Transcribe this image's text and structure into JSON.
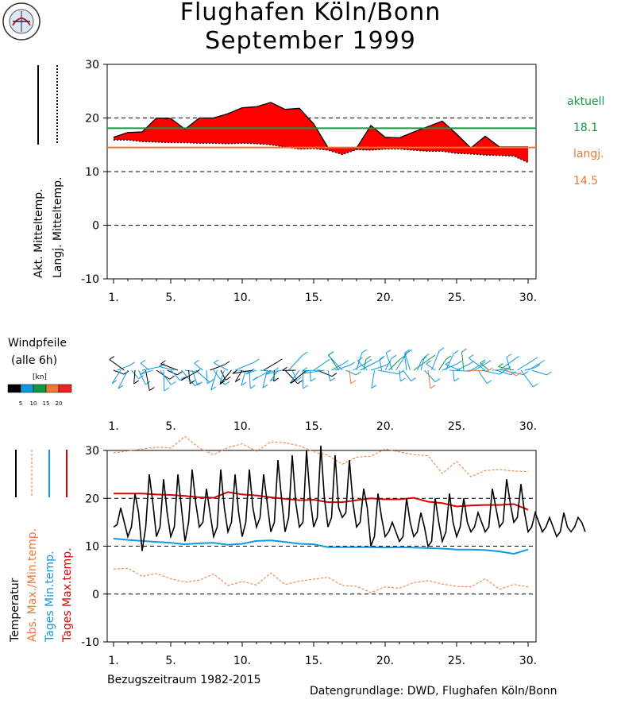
{
  "header": {
    "title_line1": "Flughafen Köln/Bonn",
    "title_line2": "September 1999"
  },
  "logo": {
    "text": "Wetterstation"
  },
  "footer": {
    "reference_period": "Bezugszeitraum 1982-2015",
    "source": "Datengrundlage: DWD, Flughafen Köln/Bonn"
  },
  "colors": {
    "current": "#119944",
    "longterm": "#ee7733",
    "fill": "#ff0000",
    "tmax": "#dd0000",
    "tmin": "#1199dd",
    "absolute": "#ee7733"
  },
  "side_labels": {
    "aktuell_label": "aktuell",
    "aktuell_value": "18.1",
    "langj_label": "langj.",
    "langj_value": "14.5"
  },
  "wind_legend": {
    "title_line1": "Windpfeile",
    "title_line2": "(alle 6h)",
    "unit": "[kn]",
    "ticks": [
      "5",
      "10",
      "15",
      "20"
    ],
    "colors": [
      "#000000",
      "#1199dd",
      "#119944",
      "#ee7733",
      "#ee2222"
    ]
  },
  "chart_data": [
    {
      "type": "area",
      "ylabel_1": "Akt. Mitteltemp.",
      "ylabel_2": "Langj. Mitteltemp.",
      "ylim": [
        -10,
        30
      ],
      "yticks": [
        "-10",
        "0",
        "10",
        "20",
        "30"
      ],
      "xticks": [
        "1.",
        "5.",
        "10.",
        "15.",
        "20.",
        "25.",
        "30."
      ],
      "grid": "dashed horizontal",
      "x": [
        1,
        2,
        3,
        4,
        5,
        6,
        7,
        8,
        9,
        10,
        11,
        12,
        13,
        14,
        15,
        16,
        17,
        18,
        19,
        20,
        21,
        22,
        23,
        24,
        25,
        26,
        27,
        28,
        29,
        30
      ],
      "series": [
        {
          "name": "Akt. Mitteltemp.",
          "values": [
            16.4,
            17.3,
            17.4,
            20.0,
            19.9,
            17.9,
            20.0,
            20.0,
            20.8,
            21.9,
            22.1,
            22.9,
            21.6,
            21.8,
            18.9,
            14.5,
            14.5,
            14.4,
            18.6,
            16.4,
            16.3,
            17.4,
            18.4,
            19.4,
            17.0,
            14.4,
            16.6,
            14.6,
            14.6,
            14.6
          ]
        },
        {
          "name": "Langj. Mitteltemp.",
          "values": [
            15.9,
            15.9,
            15.6,
            15.5,
            15.4,
            15.4,
            15.3,
            15.3,
            15.2,
            15.3,
            15.2,
            15.0,
            14.6,
            14.2,
            14.3,
            14.0,
            13.2,
            14.1,
            14.0,
            14.2,
            14.2,
            14.0,
            13.8,
            13.8,
            13.4,
            13.3,
            13.1,
            13.0,
            12.9,
            11.7
          ]
        }
      ],
      "reference_lines": [
        {
          "name": "aktuell",
          "value": 18.1
        },
        {
          "name": "langj.",
          "value": 14.5
        }
      ]
    },
    {
      "type": "line",
      "ylabel_1": "Temperatur",
      "ylabel_2": "Abs. Max./Min.temp.",
      "ylabel_3": "Tages Min.temp.",
      "ylabel_4": "Tages Max.temp.",
      "ylim": [
        -10,
        30
      ],
      "yticks": [
        "-10",
        "0",
        "10",
        "20",
        "30"
      ],
      "xticks": [
        "1.",
        "5.",
        "10.",
        "15.",
        "20.",
        "25.",
        "30."
      ],
      "grid": "dashed horizontal",
      "series": [
        {
          "name": "Temperatur",
          "x_step": 0.25,
          "x_start": 1,
          "values": [
            14,
            14.5,
            18,
            15,
            12,
            14,
            21,
            17,
            9,
            14,
            25,
            19,
            12,
            14,
            24,
            17,
            12,
            14,
            25,
            18,
            11,
            15,
            26,
            19,
            14,
            15,
            22,
            17,
            12,
            14,
            26,
            18,
            13,
            15,
            25,
            17,
            12,
            15,
            26,
            18,
            14,
            16,
            25,
            19,
            13,
            15,
            28,
            20,
            13,
            16,
            29,
            19,
            14,
            15,
            30,
            20,
            14,
            16,
            31,
            20,
            14,
            16,
            29,
            18,
            16,
            17,
            28,
            19,
            14,
            15,
            22,
            18,
            10,
            12,
            21,
            16,
            12,
            13,
            15,
            13,
            11,
            12,
            20,
            15,
            12,
            13,
            17,
            14,
            10,
            11,
            20,
            15,
            11,
            13,
            21,
            15,
            12,
            14,
            20,
            15,
            13,
            14,
            17,
            15,
            13,
            14,
            22,
            18,
            14,
            15,
            24,
            19,
            15,
            16,
            23,
            17,
            13,
            14,
            17,
            15,
            13,
            14,
            16,
            14,
            12,
            13,
            17,
            14,
            13,
            14,
            16,
            15,
            13
          ]
        },
        {
          "name": "Tages Max.temp.",
          "values": [
            21.0,
            21.0,
            21.0,
            20.8,
            20.7,
            20.5,
            20.2,
            20.1,
            21.3,
            20.8,
            20.6,
            20.2,
            19.9,
            19.6,
            19.7,
            19.2,
            19.2,
            19.6,
            20.0,
            19.8,
            19.8,
            20.1,
            19.3,
            19.0,
            18.3,
            18.5,
            18.6,
            18.6,
            18.8,
            17.6
          ]
        },
        {
          "name": "Tages Min.temp.",
          "values": [
            11.6,
            11.3,
            11.1,
            10.9,
            10.7,
            10.4,
            10.6,
            10.7,
            10.3,
            10.5,
            11.1,
            11.2,
            10.9,
            10.5,
            10.4,
            9.8,
            9.8,
            9.8,
            9.8,
            9.7,
            9.8,
            9.7,
            9.6,
            9.5,
            9.3,
            9.3,
            9.2,
            8.9,
            8.4,
            9.3
          ]
        },
        {
          "name": "Abs. Max.temp.",
          "values": [
            29.5,
            29.9,
            30.3,
            30.7,
            30.5,
            32.9,
            30.5,
            29.1,
            30.6,
            31.4,
            29.8,
            31.8,
            31.6,
            31.0,
            29.7,
            29.0,
            27.1,
            28.6,
            28.8,
            30.3,
            29.7,
            29.1,
            28.9,
            25.2,
            27.7,
            24.5,
            25.8,
            26.0,
            25.7,
            25.6
          ]
        },
        {
          "name": "Abs. Min.temp.",
          "values": [
            5.2,
            5.4,
            3.7,
            4.3,
            3.2,
            2.5,
            2.9,
            4.2,
            1.8,
            2.6,
            1.9,
            4.4,
            2.0,
            2.7,
            3.1,
            3.5,
            1.8,
            1.6,
            0.3,
            1.5,
            1.2,
            2.4,
            2.8,
            2.1,
            1.6,
            1.5,
            3.2,
            1.0,
            2.0,
            1.5
          ]
        }
      ]
    }
  ]
}
